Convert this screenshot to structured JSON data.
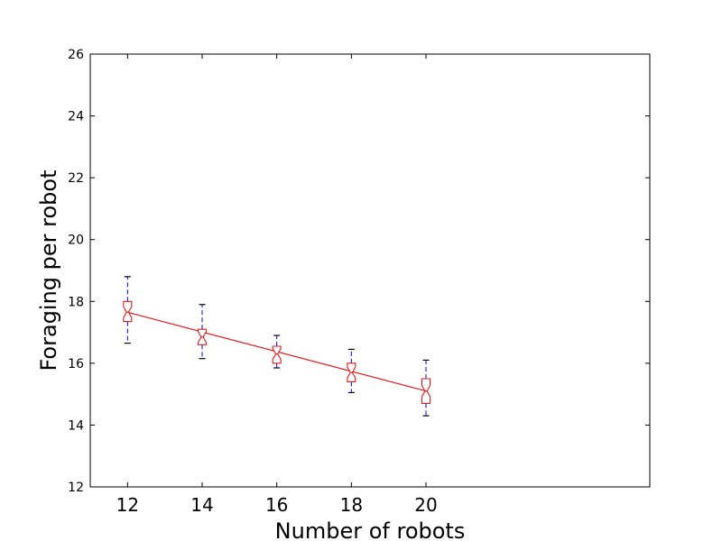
{
  "chart_data": {
    "type": "box",
    "title": "",
    "xlabel": "Number of robots",
    "ylabel": "Foraging per robot",
    "xlim": [
      11,
      26
    ],
    "ylim": [
      12,
      26
    ],
    "xticks": [
      12,
      14,
      16,
      18,
      20
    ],
    "yticks": [
      12,
      14,
      16,
      18,
      20,
      22,
      24,
      26
    ],
    "grid": false,
    "notched": true,
    "boxes": [
      {
        "x": 12,
        "whisker_low": 16.65,
        "q1": 17.35,
        "median": 17.65,
        "q3": 18.0,
        "whisker_high": 18.8
      },
      {
        "x": 14,
        "whisker_low": 16.15,
        "q1": 16.6,
        "median": 16.85,
        "q3": 17.1,
        "whisker_high": 17.9
      },
      {
        "x": 16,
        "whisker_low": 15.85,
        "q1": 16.0,
        "median": 16.3,
        "q3": 16.55,
        "whisker_high": 16.9
      },
      {
        "x": 18,
        "whisker_low": 15.05,
        "q1": 15.4,
        "median": 15.7,
        "q3": 16.0,
        "whisker_high": 16.45
      },
      {
        "x": 20,
        "whisker_low": 14.3,
        "q1": 14.7,
        "median": 15.1,
        "q3": 15.5,
        "whisker_high": 16.1
      }
    ],
    "trend_line": {
      "x": [
        12,
        20
      ],
      "y": [
        17.65,
        15.1
      ]
    },
    "colors": {
      "box": "#e41a1c",
      "whisker": "#0000ff",
      "cap": "#000000",
      "trend": "#e41a1c"
    }
  }
}
